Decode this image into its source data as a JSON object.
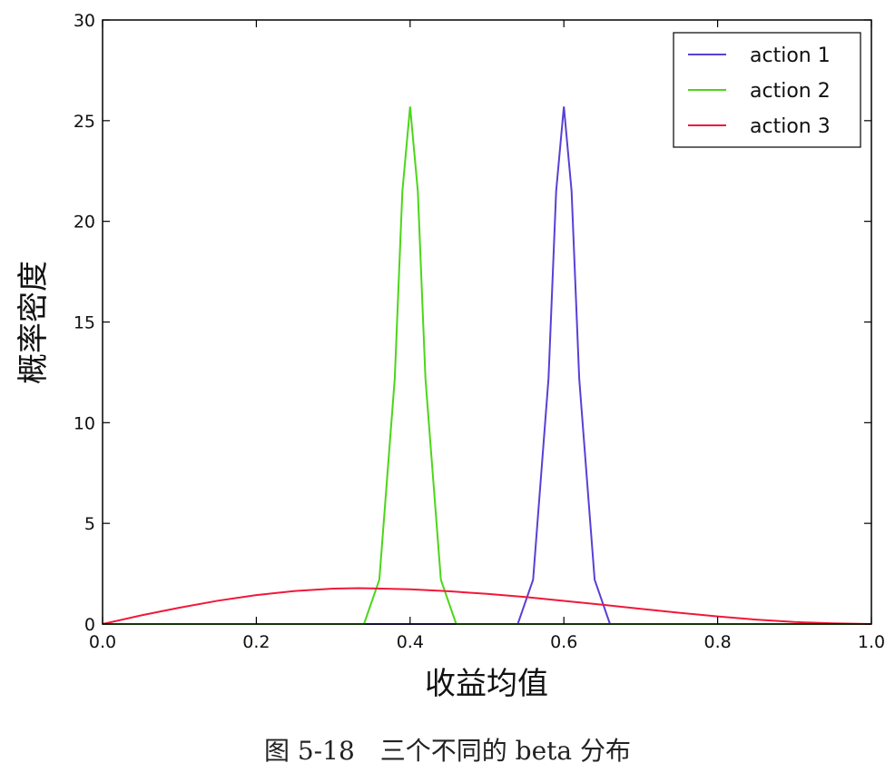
{
  "chart_data": {
    "type": "line",
    "xlabel": "收益均值",
    "ylabel": "概率密度",
    "xlim": [
      0.0,
      1.0
    ],
    "ylim": [
      0,
      30
    ],
    "xticks": [
      "0.0",
      "0.2",
      "0.4",
      "0.6",
      "0.8",
      "1.0"
    ],
    "yticks": [
      "0",
      "5",
      "10",
      "15",
      "20",
      "25",
      "30"
    ],
    "grid": false,
    "legend_position": "top-right",
    "series": [
      {
        "name": "action 1",
        "color": "#5a3fd6",
        "x": [
          0.0,
          0.54,
          0.56,
          0.58,
          0.59,
          0.6,
          0.61,
          0.62,
          0.64,
          0.66,
          1.0
        ],
        "y": [
          0,
          0,
          2.2,
          12.2,
          21.5,
          25.7,
          21.5,
          12.2,
          2.2,
          0,
          0
        ]
      },
      {
        "name": "action 2",
        "color": "#4cd619",
        "x": [
          0.0,
          0.34,
          0.36,
          0.38,
          0.39,
          0.4,
          0.41,
          0.42,
          0.44,
          0.46,
          1.0
        ],
        "y": [
          0,
          0,
          2.2,
          12.2,
          21.5,
          25.7,
          21.5,
          12.2,
          2.2,
          0,
          0
        ]
      },
      {
        "name": "action 3",
        "color": "#f0183a",
        "x": [
          0.0,
          0.05,
          0.1,
          0.15,
          0.2,
          0.25,
          0.3,
          0.333,
          0.35,
          0.4,
          0.45,
          0.5,
          0.55,
          0.6,
          0.65,
          0.7,
          0.75,
          0.8,
          0.85,
          0.9,
          0.95,
          1.0
        ],
        "y": [
          0,
          0.43,
          0.81,
          1.16,
          1.44,
          1.64,
          1.76,
          1.78,
          1.77,
          1.73,
          1.63,
          1.5,
          1.34,
          1.15,
          0.96,
          0.76,
          0.56,
          0.38,
          0.22,
          0.1,
          0.03,
          0
        ]
      }
    ]
  },
  "caption": "图 5-18　三个不同的 beta 分布"
}
